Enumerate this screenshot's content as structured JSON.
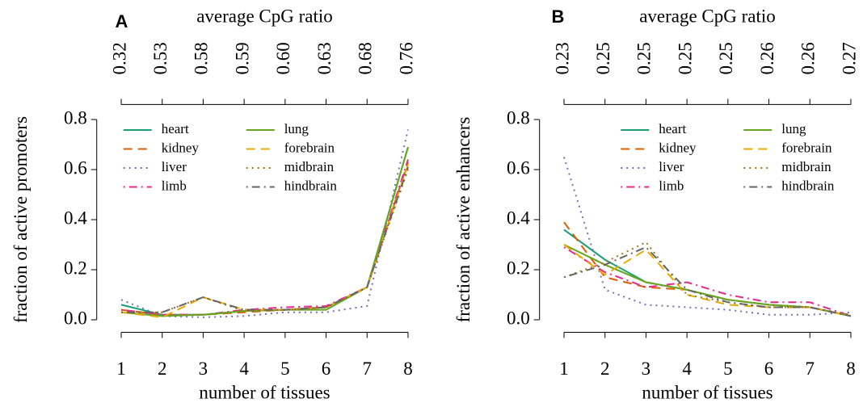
{
  "chart_data": [
    {
      "type": "line",
      "panel_label": "A",
      "x2_label": "average CpG ratio",
      "xlabel": "number of tissues",
      "ylabel": "fraction of active promoters",
      "x": [
        1,
        2,
        3,
        4,
        5,
        6,
        7,
        8
      ],
      "xlim": [
        0.6,
        8.4
      ],
      "ylim": [
        -0.05,
        0.86
      ],
      "xticks": [
        1,
        2,
        3,
        4,
        5,
        6,
        7,
        8
      ],
      "yticks": [
        {
          "value": 0,
          "label": "0.0"
        },
        0.2,
        0.4,
        0.6,
        0.8
      ],
      "x2ticks": [
        {
          "value": 1,
          "label": "0.32"
        },
        {
          "value": 2,
          "label": "0.53"
        },
        {
          "value": 3,
          "label": "0.58"
        },
        {
          "value": 4,
          "label": "0.59"
        },
        {
          "value": 5,
          "label": "0.60"
        },
        {
          "value": 6,
          "label": "0.63"
        },
        {
          "value": 7,
          "label": "0.68"
        },
        {
          "value": 8,
          "label": "0.76"
        }
      ],
      "legend": "topleft",
      "series": [
        {
          "name": "heart",
          "color": "#1b9e77",
          "dash": "solid",
          "values": [
            0.06,
            0.02,
            0.02,
            0.035,
            0.04,
            0.05,
            0.13,
            0.69
          ]
        },
        {
          "name": "kidney",
          "color": "#d95f02",
          "dash": "dashed",
          "values": [
            0.04,
            0.02,
            0.02,
            0.03,
            0.04,
            0.05,
            0.13,
            0.63
          ]
        },
        {
          "name": "liver",
          "color": "#7570b3",
          "dash": "dotted",
          "values": [
            0.08,
            0.015,
            0.01,
            0.015,
            0.03,
            0.03,
            0.055,
            0.76
          ]
        },
        {
          "name": "limb",
          "color": "#e7298a",
          "dash": "dotdash",
          "values": [
            0.04,
            0.02,
            0.02,
            0.04,
            0.05,
            0.055,
            0.13,
            0.64
          ]
        },
        {
          "name": "lung",
          "color": "#66a61e",
          "dash": "solid",
          "values": [
            0.03,
            0.015,
            0.02,
            0.035,
            0.04,
            0.04,
            0.13,
            0.69
          ]
        },
        {
          "name": "forebrain",
          "color": "#e6ab02",
          "dash": "dashed",
          "values": [
            0.03,
            0.01,
            0.09,
            0.04,
            0.04,
            0.05,
            0.13,
            0.62
          ]
        },
        {
          "name": "midbrain",
          "color": "#a6761d",
          "dash": "dotted",
          "values": [
            0.03,
            0.03,
            0.09,
            0.035,
            0.04,
            0.05,
            0.13,
            0.6
          ]
        },
        {
          "name": "hindbrain",
          "color": "#666666",
          "dash": "dotdash",
          "values": [
            0.03,
            0.03,
            0.09,
            0.04,
            0.04,
            0.05,
            0.13,
            0.61
          ]
        }
      ]
    },
    {
      "type": "line",
      "panel_label": "B",
      "x2_label": "average CpG ratio",
      "xlabel": "number of tissues",
      "ylabel": "fraction of active enhancers",
      "x": [
        1,
        2,
        3,
        4,
        5,
        6,
        7,
        8
      ],
      "xlim": [
        0.6,
        8.4
      ],
      "ylim": [
        -0.05,
        0.86
      ],
      "xticks": [
        1,
        2,
        3,
        4,
        5,
        6,
        7,
        8
      ],
      "yticks": [
        {
          "value": 0,
          "label": "0.0"
        },
        0.2,
        0.4,
        0.6,
        0.8
      ],
      "x2ticks": [
        {
          "value": 1,
          "label": "0.23"
        },
        {
          "value": 2,
          "label": "0.25"
        },
        {
          "value": 3,
          "label": "0.25"
        },
        {
          "value": 4,
          "label": "0.25"
        },
        {
          "value": 5,
          "label": "0.25"
        },
        {
          "value": 6,
          "label": "0.26"
        },
        {
          "value": 7,
          "label": "0.26"
        },
        {
          "value": 8,
          "label": "0.27"
        }
      ],
      "legend": "topright",
      "series": [
        {
          "name": "heart",
          "color": "#1b9e77",
          "dash": "solid",
          "values": [
            0.36,
            0.24,
            0.15,
            0.12,
            0.08,
            0.06,
            0.05,
            0.015
          ]
        },
        {
          "name": "kidney",
          "color": "#d95f02",
          "dash": "dashed",
          "values": [
            0.39,
            0.17,
            0.13,
            0.12,
            0.08,
            0.06,
            0.05,
            0.015
          ]
        },
        {
          "name": "liver",
          "color": "#7570b3",
          "dash": "dotted",
          "values": [
            0.65,
            0.12,
            0.06,
            0.05,
            0.04,
            0.02,
            0.02,
            0.03
          ]
        },
        {
          "name": "limb",
          "color": "#e7298a",
          "dash": "dotdash",
          "values": [
            0.29,
            0.19,
            0.13,
            0.15,
            0.1,
            0.07,
            0.07,
            0.015
          ]
        },
        {
          "name": "lung",
          "color": "#66a61e",
          "dash": "solid",
          "values": [
            0.3,
            0.22,
            0.15,
            0.12,
            0.08,
            0.06,
            0.05,
            0.015
          ]
        },
        {
          "name": "forebrain",
          "color": "#e6ab02",
          "dash": "dashed",
          "values": [
            0.3,
            0.18,
            0.28,
            0.1,
            0.06,
            0.05,
            0.05,
            0.015
          ]
        },
        {
          "name": "midbrain",
          "color": "#a6761d",
          "dash": "dotted",
          "values": [
            0.17,
            0.23,
            0.31,
            0.1,
            0.07,
            0.05,
            0.05,
            0.02
          ]
        },
        {
          "name": "hindbrain",
          "color": "#666666",
          "dash": "dotdash",
          "values": [
            0.17,
            0.22,
            0.29,
            0.12,
            0.07,
            0.05,
            0.05,
            0.015
          ]
        }
      ]
    }
  ]
}
